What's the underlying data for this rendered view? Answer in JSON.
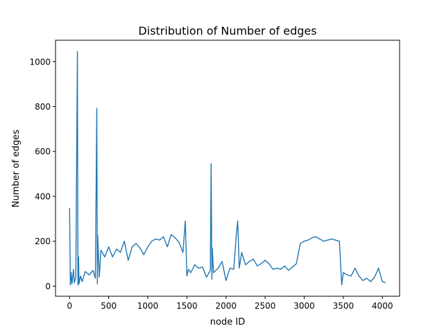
{
  "chart_data": {
    "type": "line",
    "title": "Distribution of Number of edges",
    "xlabel": "node ID",
    "ylabel": "Number of edges",
    "xlim": [
      -180,
      4220
    ],
    "ylim": [
      -45,
      1095
    ],
    "xticks": [
      0,
      500,
      1000,
      1500,
      2000,
      2500,
      3000,
      3500,
      4000
    ],
    "xtick_labels": [
      "0",
      "500",
      "1000",
      "1500",
      "2000",
      "2500",
      "3000",
      "3500",
      "4000"
    ],
    "yticks": [
      0,
      200,
      400,
      600,
      800,
      1000
    ],
    "ytick_labels": [
      "0",
      "200",
      "400",
      "600",
      "800",
      "1000"
    ],
    "grid": false,
    "series_color": "#1f77b4",
    "series": [
      {
        "name": "",
        "x": [
          0,
          10,
          20,
          30,
          50,
          60,
          80,
          100,
          107,
          110,
          115,
          120,
          140,
          160,
          200,
          250,
          300,
          330,
          348,
          355,
          360,
          380,
          400,
          450,
          500,
          550,
          600,
          650,
          700,
          750,
          800,
          850,
          900,
          950,
          1000,
          1050,
          1100,
          1150,
          1200,
          1250,
          1300,
          1350,
          1400,
          1450,
          1480,
          1500,
          1520,
          1550,
          1600,
          1650,
          1700,
          1750,
          1800,
          1810,
          1820,
          1825,
          1840,
          1900,
          1950,
          2000,
          2050,
          2100,
          2130,
          2150,
          2170,
          2200,
          2250,
          2300,
          2350,
          2400,
          2450,
          2500,
          2550,
          2600,
          2650,
          2700,
          2750,
          2800,
          2850,
          2900,
          2950,
          3000,
          3050,
          3100,
          3150,
          3200,
          3250,
          3300,
          3350,
          3400,
          3450,
          3480,
          3500,
          3550,
          3600,
          3650,
          3700,
          3750,
          3800,
          3850,
          3900,
          3950,
          4000,
          4039
        ],
        "y": [
          348,
          5,
          60,
          10,
          75,
          15,
          40,
          1045,
          5,
          30,
          130,
          10,
          45,
          20,
          65,
          50,
          70,
          35,
          792,
          10,
          225,
          40,
          160,
          130,
          175,
          130,
          165,
          150,
          200,
          115,
          175,
          190,
          170,
          140,
          175,
          200,
          210,
          205,
          220,
          175,
          230,
          215,
          195,
          150,
          290,
          45,
          75,
          60,
          95,
          80,
          85,
          40,
          70,
          545,
          30,
          170,
          60,
          80,
          110,
          25,
          80,
          75,
          220,
          290,
          80,
          150,
          95,
          110,
          120,
          90,
          100,
          115,
          100,
          75,
          80,
          75,
          90,
          70,
          85,
          100,
          190,
          200,
          205,
          215,
          220,
          210,
          200,
          205,
          210,
          205,
          200,
          5,
          60,
          50,
          45,
          80,
          45,
          25,
          35,
          20,
          40,
          80,
          20,
          15
        ]
      }
    ]
  }
}
